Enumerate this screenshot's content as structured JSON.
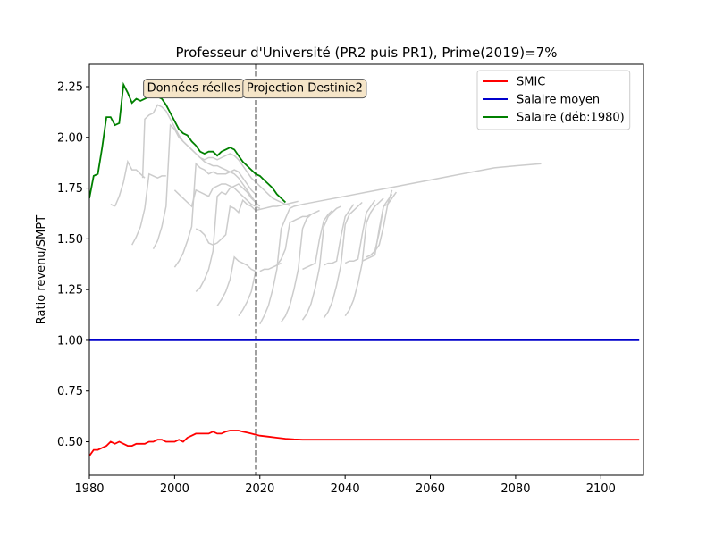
{
  "chart_data": {
    "type": "line",
    "title": "Professeur d'Université (PR2 puis PR1), Prime(2019)=7%",
    "xlabel": "",
    "ylabel": "Ratio revenu/SMPT",
    "xlim": [
      1980,
      2110
    ],
    "ylim": [
      0.335,
      2.36
    ],
    "xticks": [
      1980,
      2000,
      2020,
      2040,
      2060,
      2080,
      2100
    ],
    "yticks": [
      0.5,
      0.75,
      1.0,
      1.25,
      1.5,
      1.75,
      2.0,
      2.25
    ],
    "legend_position": "top-right",
    "grid": false,
    "vline_x": 2019,
    "annotations": [
      {
        "text": "Données réelles",
        "x": 2004.5,
        "y": 2.245
      },
      {
        "text": "Projection Destinie2",
        "x": 2030.5,
        "y": 2.245
      }
    ],
    "series": [
      {
        "name": "SMIC",
        "color": "#ff0000",
        "x": [
          1980,
          1981,
          1982,
          1983,
          1984,
          1985,
          1986,
          1987,
          1988,
          1989,
          1990,
          1991,
          1992,
          1993,
          1994,
          1995,
          1996,
          1997,
          1998,
          1999,
          2000,
          2001,
          2002,
          2003,
          2004,
          2005,
          2006,
          2007,
          2008,
          2009,
          2010,
          2011,
          2012,
          2013,
          2014,
          2015,
          2016,
          2017,
          2018,
          2019,
          2020,
          2022,
          2024,
          2026,
          2028,
          2030,
          2035,
          2040,
          2060,
          2080,
          2109
        ],
        "y": [
          0.43,
          0.46,
          0.46,
          0.47,
          0.48,
          0.5,
          0.49,
          0.5,
          0.49,
          0.48,
          0.48,
          0.49,
          0.49,
          0.49,
          0.5,
          0.5,
          0.51,
          0.51,
          0.5,
          0.5,
          0.5,
          0.51,
          0.5,
          0.52,
          0.53,
          0.54,
          0.54,
          0.54,
          0.54,
          0.55,
          0.54,
          0.54,
          0.55,
          0.555,
          0.555,
          0.555,
          0.55,
          0.545,
          0.54,
          0.535,
          0.53,
          0.525,
          0.52,
          0.515,
          0.512,
          0.51,
          0.51,
          0.51,
          0.51,
          0.51,
          0.51
        ]
      },
      {
        "name": "Salaire moyen",
        "color": "#0000cc",
        "x": [
          1980,
          2109
        ],
        "y": [
          1.0,
          1.0
        ]
      },
      {
        "name": "Salaire (déb:1980)",
        "color": "#008000",
        "x": [
          1980,
          1981,
          1982,
          1983,
          1984,
          1985,
          1986,
          1987,
          1988,
          1989,
          1990,
          1991,
          1992,
          1993,
          1994,
          1995,
          1996,
          1997,
          1998,
          1999,
          2000,
          2001,
          2002,
          2003,
          2004,
          2005,
          2006,
          2007,
          2008,
          2009,
          2010,
          2011,
          2012,
          2013,
          2014,
          2015,
          2016,
          2017,
          2018,
          2019,
          2020,
          2021,
          2022,
          2023,
          2024,
          2025,
          2026
        ],
        "y": [
          1.7,
          1.81,
          1.82,
          1.95,
          2.1,
          2.1,
          2.06,
          2.07,
          2.26,
          2.22,
          2.17,
          2.19,
          2.18,
          2.19,
          2.2,
          2.21,
          2.2,
          2.19,
          2.16,
          2.12,
          2.08,
          2.04,
          2.02,
          2.01,
          1.98,
          1.96,
          1.93,
          1.92,
          1.93,
          1.93,
          1.91,
          1.93,
          1.94,
          1.95,
          1.94,
          1.91,
          1.88,
          1.86,
          1.84,
          1.82,
          1.81,
          1.79,
          1.77,
          1.75,
          1.72,
          1.7,
          1.68
        ]
      }
    ],
    "background_series": [
      {
        "x": [
          1985,
          1986
        ],
        "y": [
          1.67,
          1.66
        ]
      },
      {
        "x": [
          1986,
          1987,
          1988,
          1989,
          1990,
          1991,
          1992,
          1993
        ],
        "y": [
          1.66,
          1.71,
          1.78,
          1.88,
          1.84,
          1.84,
          1.82,
          1.8
        ]
      },
      {
        "x": [
          1990,
          1991,
          1992,
          1993,
          1994,
          1995,
          1996,
          1997,
          1998
        ],
        "y": [
          1.47,
          1.51,
          1.56,
          1.65,
          1.82,
          1.81,
          1.8,
          1.81,
          1.81
        ]
      },
      {
        "x": [
          1992.5,
          1993,
          1994,
          1995,
          1996,
          1997,
          1998,
          1999,
          2000,
          2001,
          2002,
          2003,
          2004,
          2005,
          2006,
          2007,
          2008,
          2009,
          2010,
          2011,
          2012,
          2013,
          2014,
          2015,
          2016,
          2017,
          2018,
          2019,
          2020,
          2021,
          2022,
          2023,
          2024,
          2025,
          2026,
          2027
        ],
        "y": [
          1.8,
          2.09,
          2.11,
          2.12,
          2.16,
          2.15,
          2.13,
          2.09,
          2.05,
          2.01,
          1.98,
          1.96,
          1.94,
          1.92,
          1.9,
          1.89,
          1.9,
          1.9,
          1.89,
          1.9,
          1.91,
          1.92,
          1.91,
          1.89,
          1.86,
          1.83,
          1.8,
          1.78,
          1.76,
          1.74,
          1.72,
          1.7,
          1.69,
          1.68,
          1.67,
          1.665
        ]
      },
      {
        "x": [
          1995,
          1996,
          1997,
          1998,
          1999,
          2000,
          2001,
          2002,
          2003,
          2004,
          2005,
          2006,
          2007,
          2008,
          2009,
          2010,
          2011,
          2012,
          2013,
          2014,
          2015,
          2016,
          2017,
          2018,
          2019,
          2020
        ],
        "y": [
          1.45,
          1.49,
          1.56,
          1.66,
          2.06,
          2.04,
          2.0,
          1.98,
          1.96,
          1.94,
          1.92,
          1.9,
          1.88,
          1.87,
          1.86,
          1.86,
          1.85,
          1.84,
          1.83,
          1.82,
          1.8,
          1.77,
          1.74,
          1.71,
          1.68,
          1.66
        ]
      },
      {
        "x": [
          2000,
          2001,
          2002,
          2003,
          2004,
          2005,
          2006,
          2007,
          2008,
          2009,
          2010,
          2011,
          2012,
          2013,
          2014,
          2015,
          2016,
          2017,
          2018,
          2019
        ],
        "y": [
          1.36,
          1.39,
          1.43,
          1.49,
          1.56,
          1.87,
          1.85,
          1.84,
          1.82,
          1.83,
          1.82,
          1.82,
          1.82,
          1.83,
          1.84,
          1.83,
          1.8,
          1.77,
          1.74,
          1.72
        ]
      },
      {
        "x": [
          2000,
          2001,
          2002,
          2003,
          2004,
          2005,
          2006,
          2007,
          2008,
          2009,
          2010,
          2011,
          2012,
          2013,
          2014,
          2015,
          2016,
          2017,
          2018,
          2019,
          2020
        ],
        "y": [
          1.74,
          1.72,
          1.7,
          1.68,
          1.66,
          1.74,
          1.73,
          1.72,
          1.71,
          1.75,
          1.76,
          1.77,
          1.77,
          1.76,
          1.75,
          1.73,
          1.71,
          1.69,
          1.67,
          1.66,
          1.65
        ]
      },
      {
        "x": [
          2005,
          2006,
          2007,
          2008,
          2009,
          2010,
          2011,
          2012,
          2013,
          2014,
          2015,
          2016,
          2017,
          2018,
          2019
        ],
        "y": [
          1.24,
          1.26,
          1.3,
          1.35,
          1.44,
          1.71,
          1.73,
          1.72,
          1.75,
          1.76,
          1.77,
          1.75,
          1.73,
          1.7,
          1.68
        ]
      },
      {
        "x": [
          2005,
          2006,
          2007,
          2008,
          2009,
          2010,
          2011,
          2012,
          2013,
          2014,
          2015,
          2016,
          2017,
          2018,
          2019
        ],
        "y": [
          1.55,
          1.54,
          1.52,
          1.48,
          1.47,
          1.48,
          1.5,
          1.52,
          1.66,
          1.65,
          1.63,
          1.69,
          1.67,
          1.66,
          1.64
        ]
      },
      {
        "x": [
          2010,
          2011,
          2012,
          2013,
          2014,
          2015,
          2016,
          2017,
          2018,
          2019
        ],
        "y": [
          1.17,
          1.2,
          1.24,
          1.3,
          1.41,
          1.39,
          1.38,
          1.37,
          1.35,
          1.34
        ]
      },
      {
        "x": [
          2015,
          2016,
          2017,
          2018,
          2019
        ],
        "y": [
          1.12,
          1.15,
          1.19,
          1.24,
          1.34
        ]
      },
      {
        "x": [
          2019,
          2020,
          2021,
          2022,
          2023,
          2024,
          2025,
          2026,
          2027,
          2028,
          2029
        ],
        "y": [
          1.64,
          1.645,
          1.65,
          1.655,
          1.66,
          1.66,
          1.665,
          1.67,
          1.675,
          1.68,
          1.685
        ]
      },
      {
        "x": [
          2020,
          2021,
          2022,
          2023,
          2024,
          2025,
          2026,
          2027,
          2028,
          2030,
          2035,
          2040,
          2045,
          2050,
          2055,
          2060,
          2065,
          2070,
          2075,
          2080,
          2086
        ],
        "y": [
          1.08,
          1.12,
          1.17,
          1.25,
          1.35,
          1.55,
          1.6,
          1.65,
          1.66,
          1.67,
          1.69,
          1.71,
          1.73,
          1.75,
          1.77,
          1.79,
          1.81,
          1.83,
          1.85,
          1.86,
          1.87
        ]
      },
      {
        "x": [
          2020,
          2021,
          2022,
          2023,
          2024,
          2025
        ],
        "y": [
          1.34,
          1.35,
          1.35,
          1.36,
          1.37,
          1.38
        ]
      },
      {
        "x": [
          2024,
          2025,
          2026,
          2027,
          2028,
          2029,
          2030,
          2031,
          2032
        ],
        "y": [
          1.37,
          1.4,
          1.45,
          1.58,
          1.59,
          1.6,
          1.61,
          1.61,
          1.62
        ]
      },
      {
        "x": [
          2025,
          2026,
          2027,
          2028,
          2029,
          2030,
          2031,
          2032,
          2033,
          2034
        ],
        "y": [
          1.09,
          1.12,
          1.17,
          1.25,
          1.35,
          1.55,
          1.6,
          1.62,
          1.63,
          1.64
        ]
      },
      {
        "x": [
          2030,
          2031,
          2032,
          2033,
          2034,
          2035,
          2036,
          2037
        ],
        "y": [
          1.35,
          1.36,
          1.37,
          1.38,
          1.5,
          1.59,
          1.62,
          1.64
        ]
      },
      {
        "x": [
          2030,
          2031,
          2032,
          2033,
          2034,
          2035,
          2036,
          2037,
          2038,
          2039
        ],
        "y": [
          1.1,
          1.13,
          1.18,
          1.26,
          1.36,
          1.56,
          1.61,
          1.63,
          1.65,
          1.66
        ]
      },
      {
        "x": [
          2035,
          2036,
          2037,
          2038,
          2039,
          2040,
          2041,
          2042
        ],
        "y": [
          1.37,
          1.38,
          1.38,
          1.39,
          1.51,
          1.61,
          1.64,
          1.67
        ]
      },
      {
        "x": [
          2035,
          2036,
          2037,
          2038,
          2039,
          2040,
          2041,
          2042,
          2043,
          2044
        ],
        "y": [
          1.11,
          1.14,
          1.19,
          1.27,
          1.37,
          1.57,
          1.62,
          1.64,
          1.66,
          1.68
        ]
      },
      {
        "x": [
          2040,
          2041,
          2042,
          2043,
          2044,
          2045,
          2046,
          2047
        ],
        "y": [
          1.38,
          1.39,
          1.39,
          1.4,
          1.52,
          1.63,
          1.66,
          1.69
        ]
      },
      {
        "x": [
          2040,
          2041,
          2042,
          2043,
          2044,
          2045,
          2046,
          2047,
          2048,
          2049
        ],
        "y": [
          1.12,
          1.15,
          1.2,
          1.28,
          1.38,
          1.58,
          1.63,
          1.66,
          1.68,
          1.7
        ]
      },
      {
        "x": [
          2044,
          2045,
          2046,
          2047,
          2048,
          2049,
          2050,
          2051
        ],
        "y": [
          1.39,
          1.4,
          1.41,
          1.42,
          1.55,
          1.66,
          1.69,
          1.72
        ]
      },
      {
        "x": [
          2045,
          2046,
          2047,
          2048,
          2049,
          2050,
          2051,
          2052
        ],
        "y": [
          1.41,
          1.42,
          1.44,
          1.53,
          1.66,
          1.67,
          1.7,
          1.73
        ]
      },
      {
        "x": [
          2046,
          2047,
          2048,
          2049,
          2050,
          2051
        ],
        "y": [
          1.42,
          1.44,
          1.47,
          1.56,
          1.67,
          1.74
        ]
      }
    ]
  }
}
